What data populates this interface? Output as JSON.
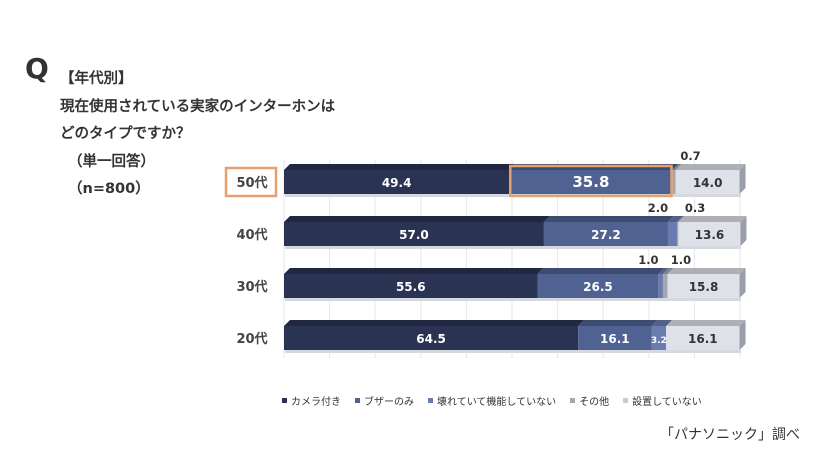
{
  "question": {
    "mark": "Q",
    "category": "【年代別】",
    "line1": "現在使用されている実家のインターホンは",
    "line2": "どのタイプですか？",
    "answer_type": "（単一回答）",
    "sample": "（n=800）"
  },
  "source": "「パナソニック」調べ",
  "colors": {
    "camera": "#2b3353",
    "buzzer": "#4f6291",
    "broken": "#6a7bb0",
    "other": "#a4a7b2",
    "none": "#dfe1e9",
    "highlight": "#e6a06f"
  },
  "chart_data": {
    "type": "bar",
    "orientation": "horizontal",
    "stacked": true,
    "unit": "%",
    "categories": [
      "50代",
      "40代",
      "30代",
      "20代"
    ],
    "highlighted_category": "50代",
    "highlighted_segment": {
      "category": "50代",
      "series": "ブザーのみ"
    },
    "series": [
      {
        "name": "カメラ付き",
        "values": [
          49.4,
          57.0,
          55.6,
          64.5
        ],
        "labels": [
          "49.4",
          "57.0",
          "55.6",
          "64.5"
        ]
      },
      {
        "name": "ブザーのみ",
        "values": [
          35.8,
          27.2,
          26.5,
          16.1
        ],
        "labels": [
          "35.8",
          "27.2",
          "26.5",
          "16.1"
        ]
      },
      {
        "name": "壊れていて機能していない",
        "values": [
          0.0,
          2.0,
          1.0,
          3.2
        ],
        "labels": [
          "",
          "2.0",
          "1.0",
          "3.2"
        ]
      },
      {
        "name": "その他",
        "values": [
          0.7,
          0.3,
          1.0,
          0.0
        ],
        "labels": [
          "0.7",
          "0.3",
          "1.0",
          ""
        ]
      },
      {
        "name": "設置していない",
        "values": [
          14.0,
          13.6,
          15.8,
          16.1
        ],
        "labels": [
          "14.0",
          "13.6",
          "15.8",
          "16.1"
        ]
      }
    ],
    "xlim": [
      0,
      100
    ],
    "legend_position": "bottom"
  }
}
